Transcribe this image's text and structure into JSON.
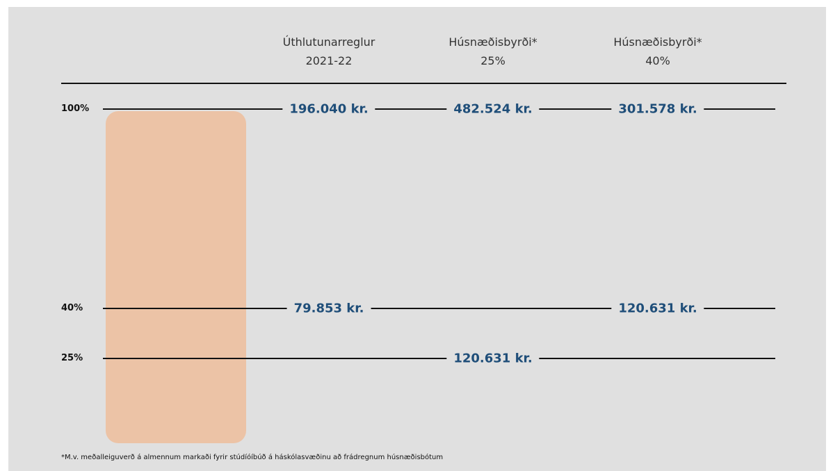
{
  "columns": [
    {
      "title": "Úthlutunarreglur",
      "subtitle": "2021-22"
    },
    {
      "title": "Húsnæðisbyrði*",
      "subtitle": "25%"
    },
    {
      "title": "Húsnæðisbyrði*",
      "subtitle": "40%"
    }
  ],
  "rows": [
    {
      "label": "100%",
      "cells": [
        "196.040 kr.",
        "482.524 kr.",
        "301.578 kr."
      ]
    },
    {
      "label": "40%",
      "cells": [
        "79.853 kr.",
        null,
        "120.631 kr."
      ]
    },
    {
      "label": "25%",
      "cells": [
        null,
        "120.631 kr.",
        null
      ]
    }
  ],
  "footnote": "*M.v. meðalleiguverð á almennum markaði fyrir stúdíóíbúð á háskólasvæðinu að frádregnum húsnæðisbótum"
}
